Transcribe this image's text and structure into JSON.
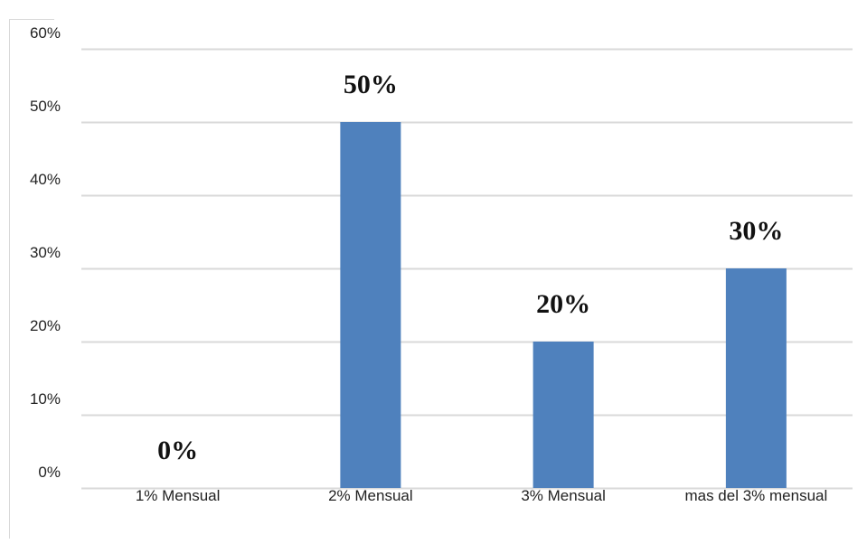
{
  "chart_data": {
    "type": "bar",
    "categories": [
      "1% Mensual",
      "2% Mensual",
      "3% Mensual",
      "mas del 3% mensual"
    ],
    "values": [
      0,
      50,
      20,
      30
    ],
    "data_labels": [
      "0%",
      "50%",
      "20%",
      "30%"
    ],
    "y_tick_labels": [
      "0%",
      "10%",
      "20%",
      "30%",
      "40%",
      "50%",
      "60%"
    ],
    "ylim": [
      0,
      60
    ],
    "title": "",
    "xlabel": "",
    "ylabel": "",
    "grid": true,
    "legend": "none",
    "colors": {
      "bar": "#4f81bd",
      "grid": "#d9d9d9",
      "frame": "#d9d9d9"
    }
  }
}
